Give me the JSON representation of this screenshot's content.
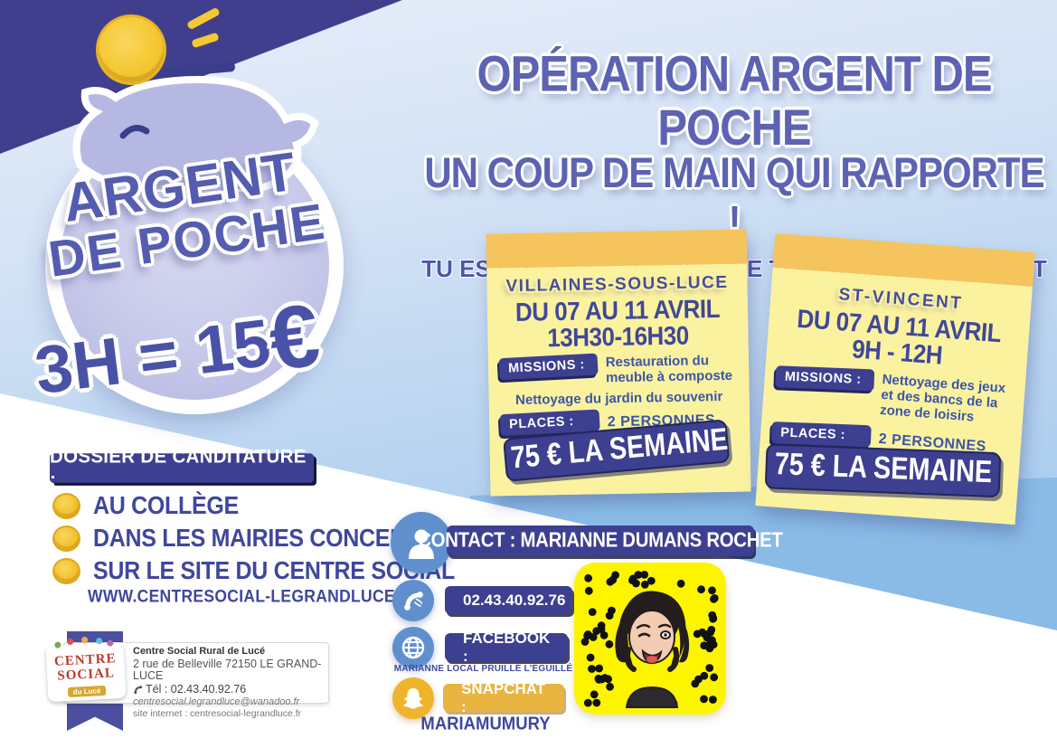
{
  "badge": {
    "line1": "ARGENT",
    "line2": "DE POCHE",
    "equation": "3H = 15",
    "euro": "€"
  },
  "header": {
    "title": "OPÉRATION ARGENT DE POCHE",
    "subtitle": "UN COUP DE MAIN QUI RAPPORTE !",
    "question": "TU ES PRÊT(E) À DONNER DE TON TEMPS UTILEMENT ?"
  },
  "notes": [
    {
      "town": "VILLAINES-SOUS-LUCE",
      "dates": "DU 07 AU 11 AVRIL",
      "hours": "13H30-16H30",
      "missions_label": "MISSIONS :",
      "mission_main": "Restauration du meuble à composte",
      "mission_extra": "Nettoyage du jardin du souvenir",
      "places_label": "PLACES :",
      "places_value": "2 PERSONNES",
      "price": "75 € LA SEMAINE"
    },
    {
      "town": "ST-VINCENT",
      "dates": "DU 07 AU 11 AVRIL",
      "hours": "9H - 12H",
      "missions_label": "MISSIONS :",
      "mission_main": "Nettoyage des jeux et des bancs de la zone de loisirs",
      "mission_extra": "",
      "places_label": "PLACES :",
      "places_value": "2 PERSONNES",
      "price": "75 € LA SEMAINE"
    }
  ],
  "dossier": {
    "title": "DOSSIER DE CANDITATURE :",
    "items": [
      "AU COLLÈGE",
      "DANS LES MAIRIES CONCERNÉES",
      "SUR LE SITE DU CENTRE SOCIAL"
    ],
    "website": "WWW.CENTRESOCIAL-LEGRANDLUCE.FR"
  },
  "contact": {
    "label": "CONTACT  : MARIANNE DUMANS ROCHET",
    "phone": "02.43.40.92.76",
    "facebook_label": "FACEBOOK :",
    "facebook_name": "MARIANNE LOCAL PRUILLÉ L'ÉGUILLÉ",
    "snapchat_label": "SNAPCHAT :",
    "snapchat_name": "MARIAMUMURY"
  },
  "footer": {
    "org": "Centre Social Rural de Lucé",
    "address": "2 rue de Belleville 72150 LE GRAND-LUCE",
    "tel": "Tél : 02.43.40.92.76",
    "email": "centresocial.legrandluce@wanadoo.fr",
    "site": "site internet : centresocial-legrandluce.fr",
    "logo_top": "CENTRE",
    "logo_bottom": "SOCIAL",
    "logo_sub": "du Lucé"
  },
  "colors": {
    "indigo": "#3d3f90",
    "periwinkle": "#5c63b4",
    "wedge_purple": "#423e8e",
    "note_band_amber": "#f6c45c",
    "note_yellow": "#fbf2a0",
    "coin_gold": "#f2c331",
    "steel_blue": "#5f90cd",
    "snap_gold": "#efb42c",
    "qr_yellow": "#fdf500"
  }
}
